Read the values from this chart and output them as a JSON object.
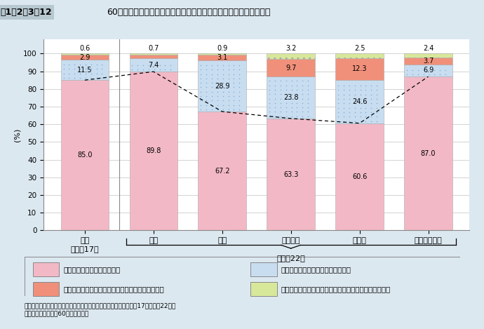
{
  "title_left": "図1－2－3－12",
  "title_right": "60歳以上の高齢者の日常生活における介助等の必要度（国際比較）",
  "categories": [
    "日本\n（平成17）",
    "日本",
    "韓国",
    "アメリカ",
    "ドイツ",
    "スウェーデン"
  ],
  "series": {
    "s1": [
      85.0,
      89.8,
      67.2,
      63.3,
      60.6,
      87.0
    ],
    "s2": [
      11.5,
      7.4,
      28.9,
      23.8,
      24.6,
      6.9
    ],
    "s3": [
      2.9,
      2.2,
      3.1,
      9.7,
      12.3,
      3.7
    ],
    "s4": [
      0.6,
      0.7,
      0.9,
      3.2,
      2.5,
      2.4
    ]
  },
  "colors": {
    "s1": "#f2b8c6",
    "s2": "#c8ddf0",
    "s3": "#f0907a",
    "s4": "#d8e89a"
  },
  "legend_labels": [
    "まったく不自由なく過ごせる",
    "少し不自由だが何とか自分でできる",
    "不自由で、一部ほかの人の世話や介護を受けている",
    "不自由で、全面的にほかの人の世話や介護を受けている"
  ],
  "ylabel": "(%)",
  "ylim": [
    0,
    100
  ],
  "yticks": [
    0,
    10,
    20,
    30,
    40,
    50,
    60,
    70,
    80,
    90,
    100
  ],
  "heisei22_label": "（平成22）",
  "source_text": "資料：内閣府「高齢者の生活と意識に関する国際比較調査」（平成17年・平成22年）\n（注）調査対象は、60歳以上の男女",
  "background_color": "#dce8f0",
  "plot_background": "#ffffff"
}
